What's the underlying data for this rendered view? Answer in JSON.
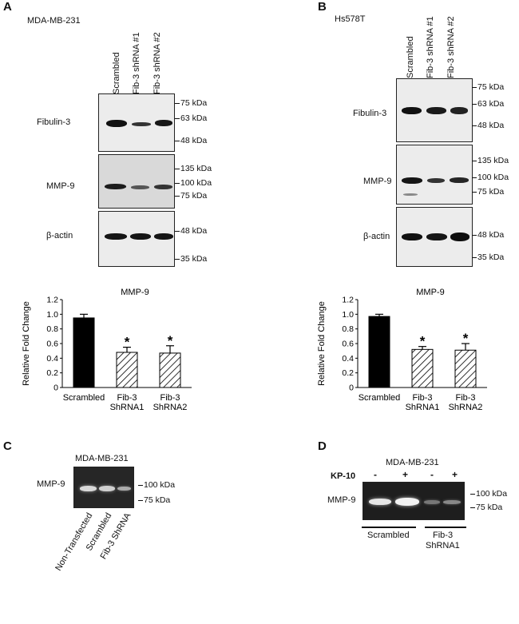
{
  "panels": {
    "A": {
      "letter": "A",
      "cell_line": "MDA-MB-231",
      "lanes": [
        "Scrambled",
        "Fib-3 shRNA #1",
        "Fib-3 shRNA #2"
      ],
      "blots": [
        {
          "protein": "Fibulin-3",
          "markers": [
            "75 kDa",
            "63 kDa",
            "48 kDa"
          ]
        },
        {
          "protein": "MMP-9",
          "markers": [
            "135 kDa",
            "100 kDa",
            "75 kDa"
          ]
        },
        {
          "protein": "β-actin",
          "markers": [
            "48 kDa",
            "35 kDa"
          ]
        }
      ]
    },
    "B": {
      "letter": "B",
      "cell_line": "Hs578T",
      "lanes": [
        "Scrambled",
        "Fib-3 shRNA #1",
        "Fib-3 shRNA #2"
      ],
      "blots": [
        {
          "protein": "Fibulin-3",
          "markers": [
            "75 kDa",
            "63 kDa",
            "48 kDa"
          ]
        },
        {
          "protein": "MMP-9",
          "markers": [
            "135 kDa",
            "100 kDa",
            "75 kDa"
          ]
        },
        {
          "protein": "β-actin",
          "markers": [
            "48 kDa",
            "35 kDa"
          ]
        }
      ]
    },
    "C": {
      "letter": "C",
      "cell_line": "MDA-MB-231",
      "protein": "MMP-9",
      "markers": [
        "100 kDa",
        "75 kDa"
      ],
      "lanes": [
        "Non-Transfected",
        "Scrambled",
        "Fib-3 ShRNA"
      ]
    },
    "D": {
      "letter": "D",
      "cell_line": "MDA-MB-231",
      "treatment_label": "KP-10",
      "treatment_signs": [
        "-",
        "+",
        "-",
        "+"
      ],
      "protein": "MMP-9",
      "markers": [
        "100 kDa",
        "75 kDa"
      ],
      "groups": [
        "Scrambled",
        "Fib-3",
        "ShRNA1"
      ]
    }
  },
  "chart_data": [
    {
      "type": "bar",
      "title": "MMP-9",
      "ylabel": "Relative Fold Change",
      "categories": [
        "Scrambled",
        "Fib-3 ShRNA1",
        "Fib-3 ShRNA2"
      ],
      "category_lines": [
        [
          "Scrambled"
        ],
        [
          "Fib-3",
          "ShRNA1"
        ],
        [
          "Fib-3",
          "ShRNA2"
        ]
      ],
      "values": [
        0.95,
        0.48,
        0.47
      ],
      "errors": [
        0.05,
        0.07,
        0.1
      ],
      "significance": [
        "",
        "*",
        "*"
      ],
      "ylim": [
        0,
        1.2
      ],
      "yticks": [
        "0",
        "0.2",
        "0.4",
        "0.6",
        "0.8",
        "1.0",
        "1.2"
      ],
      "fills": [
        "solid",
        "hatched",
        "hatched"
      ],
      "colors": {
        "bar": "#000000"
      }
    },
    {
      "type": "bar",
      "title": "MMP-9",
      "ylabel": "Relative Fold Change",
      "categories": [
        "Scrambled",
        "Fib-3 ShRNA1",
        "Fib-3 ShRNA2"
      ],
      "category_lines": [
        [
          "Scrambled"
        ],
        [
          "Fib-3",
          "ShRNA1"
        ],
        [
          "Fib-3",
          "ShRNA2"
        ]
      ],
      "values": [
        0.97,
        0.52,
        0.51
      ],
      "errors": [
        0.03,
        0.04,
        0.09
      ],
      "significance": [
        "",
        "*",
        "*"
      ],
      "ylim": [
        0,
        1.2
      ],
      "yticks": [
        "0",
        "0.2",
        "0.4",
        "0.6",
        "0.8",
        "1.0",
        "1.2"
      ],
      "fills": [
        "solid",
        "hatched",
        "hatched"
      ],
      "colors": {
        "bar": "#000000"
      }
    }
  ]
}
